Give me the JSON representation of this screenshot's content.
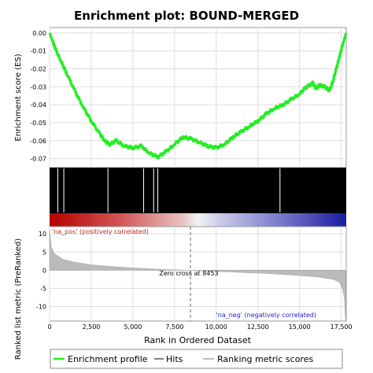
{
  "chart_data": {
    "type": "line",
    "title": "Enrichment plot: BOUND-MERGED",
    "es_panel": {
      "ylabel": "Enrichment score (ES)",
      "ylim": [
        -0.075,
        0.003
      ],
      "yticks": [
        "0.00",
        "-0.01",
        "-0.02",
        "-0.03",
        "-0.04",
        "-0.05",
        "-0.06",
        "-0.07"
      ],
      "ytick_values": [
        0.0,
        -0.01,
        -0.02,
        -0.03,
        -0.04,
        -0.05,
        -0.06,
        -0.07
      ],
      "grid": true,
      "line_color": "#22ee22",
      "series": [
        {
          "name": "Enrichment profile",
          "x": [
            0,
            200,
            400,
            700,
            1000,
            1500,
            2000,
            2500,
            3000,
            3300,
            3600,
            4000,
            4500,
            5000,
            5500,
            6000,
            6500,
            7000,
            7500,
            8000,
            8500,
            9000,
            9500,
            10000,
            10500,
            11000,
            11500,
            12000,
            12500,
            13000,
            13500,
            14000,
            14500,
            15000,
            15400,
            15800,
            16000,
            16200,
            16500,
            16800,
            17000,
            17200,
            17400,
            17600,
            17800
          ],
          "y": [
            0.0,
            -0.005,
            -0.01,
            -0.016,
            -0.022,
            -0.032,
            -0.041,
            -0.049,
            -0.056,
            -0.06,
            -0.062,
            -0.06,
            -0.063,
            -0.064,
            -0.063,
            -0.067,
            -0.069,
            -0.066,
            -0.062,
            -0.058,
            -0.059,
            -0.061,
            -0.063,
            -0.064,
            -0.062,
            -0.058,
            -0.055,
            -0.052,
            -0.049,
            -0.045,
            -0.042,
            -0.04,
            -0.037,
            -0.034,
            -0.03,
            -0.028,
            -0.031,
            -0.029,
            -0.03,
            -0.032,
            -0.027,
            -0.02,
            -0.013,
            -0.006,
            0.0
          ]
        }
      ]
    },
    "hits_panel": {
      "legend": "Hits",
      "white_gaps": [
        [
          470,
          500
        ],
        [
          830,
          850
        ],
        [
          3480,
          3520
        ],
        [
          5620,
          5660
        ],
        [
          6220,
          6250
        ],
        [
          6470,
          6500
        ],
        [
          13800,
          13850
        ]
      ]
    },
    "ranked_panel": {
      "ylabel": "Ranked list metric (PreRanked)",
      "xlabel": "Rank in Ordered Dataset",
      "ylim": [
        -14,
        12
      ],
      "yticks": [
        "10",
        "5",
        "0",
        "-5",
        "-10"
      ],
      "ytick_values": [
        10,
        5,
        0,
        -5,
        -10
      ],
      "xlim": [
        0,
        17800
      ],
      "xticks": [
        "0",
        "2,500",
        "5,000",
        "7,500",
        "10,000",
        "12,500",
        "15,000",
        "17,500"
      ],
      "xtick_values": [
        0,
        2500,
        5000,
        7500,
        10000,
        12500,
        15000,
        17500
      ],
      "zero_cross": 8453,
      "zero_cross_label": "Zero cross at 8453",
      "pos_label": "'na_pos' (positively correlated)",
      "neg_label": "'na_neg' (negatively correlated)",
      "pos_color": "#cc2222",
      "neg_color": "#2222cc",
      "fill_color": "#bbbbbb",
      "metric_curve": {
        "x": [
          0,
          100,
          300,
          800,
          1500,
          2500,
          4000,
          5500,
          7000,
          8453,
          10000,
          11500,
          13000,
          14500,
          16000,
          17000,
          17400,
          17600,
          17700,
          17760
        ],
        "y": [
          11.2,
          6.5,
          4.5,
          3.0,
          2.2,
          1.5,
          0.9,
          0.5,
          0.2,
          0.0,
          -0.3,
          -0.6,
          -0.9,
          -1.3,
          -1.8,
          -2.5,
          -3.3,
          -5.5,
          -8.0,
          -14.0
        ]
      }
    },
    "legend": {
      "items": [
        {
          "label": "Enrichment profile",
          "color": "#22ee22"
        },
        {
          "label": "Hits",
          "color": "#000000"
        },
        {
          "label": "Ranking metric scores",
          "color": "#bbbbbb"
        }
      ],
      "placement": "bottom"
    }
  }
}
